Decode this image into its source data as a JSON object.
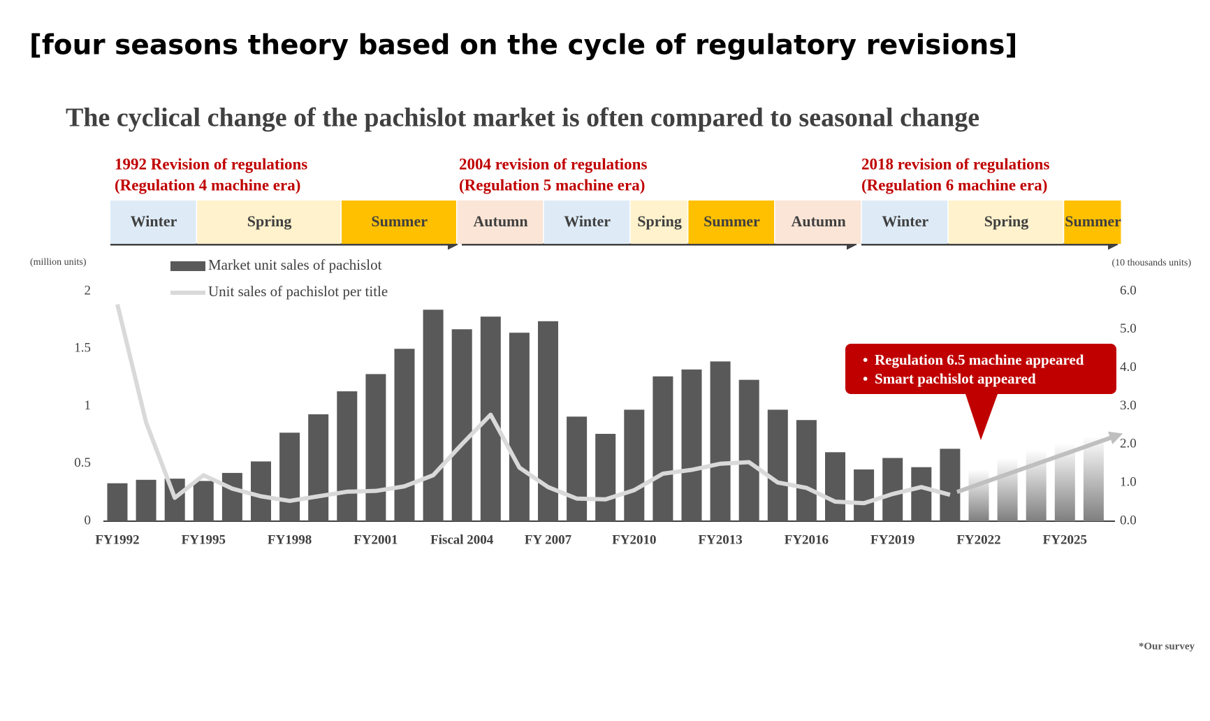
{
  "chart_data": {
    "type": "bar_line",
    "title": "[four seasons theory based on the cycle of regulatory revisions]",
    "subtitle": "The cyclical change of the pachislot market is often compared to seasonal change",
    "eras": [
      [
        "1992 Revision of regulations",
        "(Regulation 4 machine era)"
      ],
      [
        "2004 revision of regulations",
        "(Regulation 5 machine era)"
      ],
      [
        "2018 revision of regulations",
        "(Regulation 6 machine era)"
      ]
    ],
    "seasons": [
      "Winter",
      "Spring",
      "Summer",
      "Autumn",
      "Winter",
      "Spring",
      "Summer",
      "Autumn",
      "Winter",
      "Spring",
      "Summer"
    ],
    "y_axis_label": "(million units)",
    "y2_axis_label": "(10 thousands units)",
    "categories": [
      "FY1992",
      null,
      null,
      "FY1995",
      null,
      null,
      "FY1998",
      null,
      null,
      "FY2001",
      null,
      null,
      "Fiscal 2004",
      null,
      null,
      "FY 2007",
      null,
      null,
      "FY2010",
      null,
      null,
      "FY2013",
      null,
      null,
      "FY2016",
      null,
      null,
      "FY2019",
      null,
      null,
      "FY2022",
      null,
      null,
      "FY2025",
      null
    ],
    "series": [
      {
        "name": "Market unit sales of pachislot",
        "type": "bar",
        "color": "#595959",
        "axis": "y",
        "values": [
          0.33,
          0.36,
          0.37,
          0.35,
          0.42,
          0.52,
          0.77,
          0.93,
          1.13,
          1.28,
          1.5,
          1.84,
          1.67,
          1.78,
          1.64,
          1.74,
          0.91,
          0.76,
          0.97,
          1.26,
          1.32,
          1.39,
          1.23,
          0.97,
          0.88,
          0.6,
          0.45,
          0.55,
          0.47,
          0.63,
          0.45,
          0.55,
          0.62,
          0.68,
          0.74
        ],
        "estimated": [
          false,
          false,
          false,
          false,
          false,
          false,
          false,
          false,
          false,
          false,
          false,
          false,
          false,
          false,
          false,
          false,
          false,
          false,
          false,
          false,
          false,
          false,
          false,
          false,
          false,
          false,
          false,
          false,
          false,
          false,
          true,
          true,
          true,
          true,
          true
        ]
      },
      {
        "name": "Unit sales of pachislot per title",
        "type": "line",
        "color": "#d9d9d9",
        "axis": "y2",
        "values": [
          5.66,
          2.58,
          0.61,
          1.2,
          0.85,
          0.65,
          0.53,
          0.65,
          0.77,
          0.79,
          0.91,
          1.2,
          2.01,
          2.78,
          1.4,
          0.89,
          0.59,
          0.57,
          0.81,
          1.24,
          1.34,
          1.5,
          1.54,
          1.01,
          0.87,
          0.51,
          0.47,
          0.71,
          0.89,
          0.69,
          null,
          null,
          null,
          null,
          null
        ]
      }
    ],
    "ylim": [
      0,
      2
    ],
    "yticks": [
      0,
      0.5,
      1,
      1.5,
      2
    ],
    "y2lim": [
      0,
      6
    ],
    "y2ticks": [
      {
        "value": 0,
        "label": "0.0"
      },
      {
        "value": 1,
        "label": "1.0"
      },
      {
        "value": 2,
        "label": "2.0"
      },
      {
        "value": 3,
        "label": "3.0"
      },
      {
        "value": 4,
        "label": "4.0"
      },
      {
        "value": 5,
        "label": "5.0"
      },
      {
        "value": 6,
        "label": "6.0"
      }
    ],
    "callout": [
      "Regulation 6.5 machine appeared",
      "Smart pachislot appeared"
    ],
    "footnote": "*Our survey"
  }
}
